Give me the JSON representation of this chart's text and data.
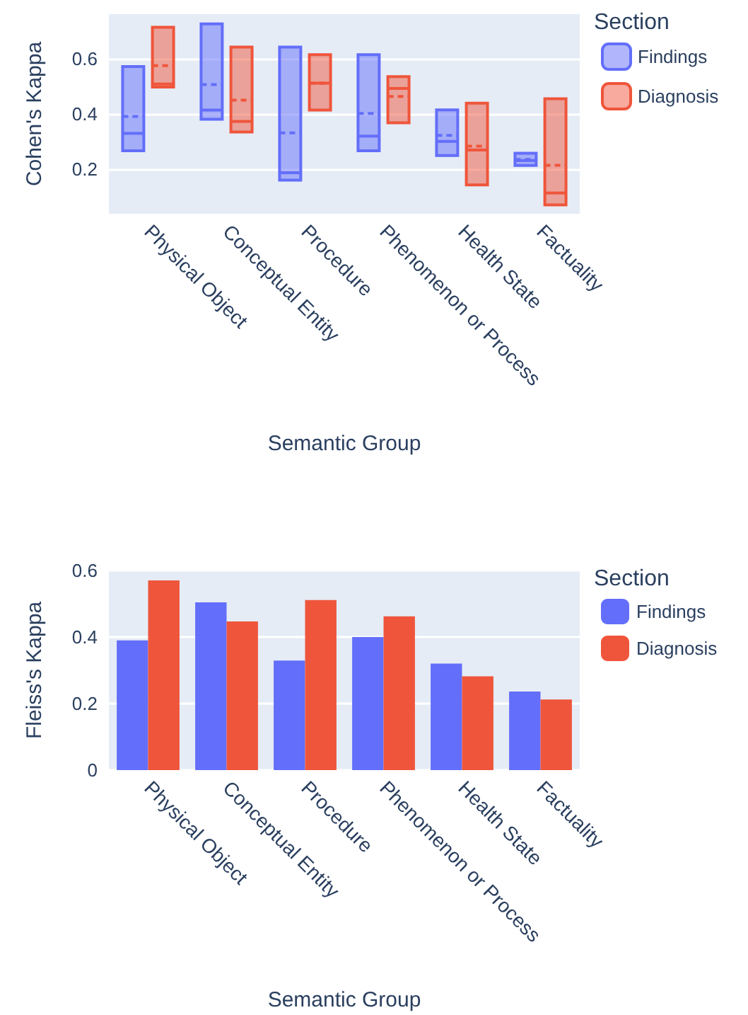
{
  "chart_data": [
    {
      "type": "box",
      "xlabel": "Semantic Group",
      "ylabel": "Cohen's Kappa",
      "legend": "top right",
      "legend_title": "Section",
      "grid": "y",
      "categories": [
        "Physical Object",
        "Conceptual Entity",
        "Procedure",
        "Phenomenon or Process",
        "Health State",
        "Factuality"
      ],
      "ylim": [
        0.04,
        0.76
      ],
      "yticks": [
        0.2,
        0.4,
        0.6
      ],
      "series": [
        {
          "name": "Findings",
          "color": "#636efa",
          "boxes": [
            {
              "low": 0.267,
              "q1": 0.267,
              "median": 0.33,
              "q3": 0.571,
              "high": 0.571,
              "mean": 0.391
            },
            {
              "low": 0.381,
              "q1": 0.381,
              "median": 0.414,
              "q3": 0.725,
              "high": 0.725,
              "mean": 0.506
            },
            {
              "low": 0.161,
              "q1": 0.161,
              "median": 0.188,
              "q3": 0.641,
              "high": 0.641,
              "mean": 0.332
            },
            {
              "low": 0.267,
              "q1": 0.267,
              "median": 0.32,
              "q3": 0.614,
              "high": 0.614,
              "mean": 0.402
            },
            {
              "low": 0.25,
              "q1": 0.25,
              "median": 0.301,
              "q3": 0.415,
              "high": 0.415,
              "mean": 0.323
            },
            {
              "low": 0.214,
              "q1": 0.214,
              "median": 0.232,
              "q3": 0.258,
              "high": 0.258,
              "mean": 0.236
            }
          ]
        },
        {
          "name": "Diagnosis",
          "color": "#ef553b",
          "boxes": [
            {
              "low": 0.497,
              "q1": 0.497,
              "median": 0.508,
              "q3": 0.713,
              "high": 0.713,
              "mean": 0.574
            },
            {
              "low": 0.335,
              "q1": 0.335,
              "median": 0.373,
              "q3": 0.641,
              "high": 0.641,
              "mean": 0.45
            },
            {
              "low": 0.414,
              "q1": 0.414,
              "median": 0.511,
              "q3": 0.614,
              "high": 0.614,
              "mean": 0.511
            },
            {
              "low": 0.368,
              "q1": 0.368,
              "median": 0.492,
              "q3": 0.535,
              "high": 0.535,
              "mean": 0.463
            },
            {
              "low": 0.144,
              "q1": 0.144,
              "median": 0.27,
              "q3": 0.439,
              "high": 0.439,
              "mean": 0.284
            },
            {
              "low": 0.072,
              "q1": 0.072,
              "median": 0.115,
              "q3": 0.455,
              "high": 0.455,
              "mean": 0.215
            }
          ]
        }
      ]
    },
    {
      "type": "bar",
      "xlabel": "Semantic Group",
      "ylabel": "Fleiss's Kappa",
      "legend": "top right",
      "legend_title": "Section",
      "grid": "y",
      "categories": [
        "Physical Object",
        "Conceptual Entity",
        "Procedure",
        "Phenomenon or Process",
        "Health State",
        "Factuality"
      ],
      "ylim": [
        0,
        0.6
      ],
      "yticks": [
        0,
        0.2,
        0.4,
        0.6
      ],
      "series": [
        {
          "name": "Findings",
          "color": "#636efa",
          "values": [
            0.39,
            0.504,
            0.329,
            0.4,
            0.32,
            0.236
          ]
        },
        {
          "name": "Diagnosis",
          "color": "#ef553b",
          "values": [
            0.57,
            0.447,
            0.511,
            0.462,
            0.282,
            0.212
          ]
        }
      ]
    }
  ]
}
